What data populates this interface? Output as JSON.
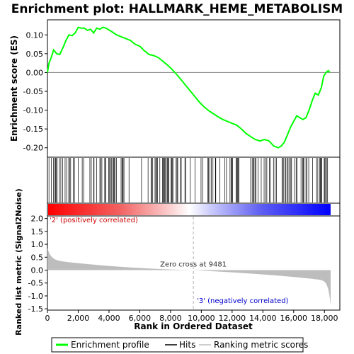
{
  "chart_data": {
    "type": "line",
    "title": "Enrichment plot: HALLMARK_HEME_METABOLISM",
    "xlabel": "Rank in Ordered Dataset",
    "ylabel_top": "Enrichment score (ES)",
    "ylabel_bottom": "Ranked list metric (Signal2Noise)",
    "xlim": [
      0,
      19000
    ],
    "x_ticks": [
      0,
      2000,
      4000,
      6000,
      8000,
      10000,
      12000,
      14000,
      16000,
      18000
    ],
    "x_tick_labels": [
      "0",
      "2,000",
      "4,000",
      "6,000",
      "8,000",
      "10,000",
      "12,000",
      "14,000",
      "16,000",
      "18,000"
    ],
    "es_ylim": [
      -0.225,
      0.14
    ],
    "es_y_ticks": [
      0.1,
      0.05,
      0.0,
      -0.05,
      -0.1,
      -0.15,
      -0.2
    ],
    "es_y_tick_labels": [
      "0.10",
      "0.05",
      "0.00",
      "-0.05",
      "-0.10",
      "-0.15",
      "-0.20"
    ],
    "metric_ylim": [
      -1.55,
      2.1
    ],
    "metric_y_ticks": [
      2.0,
      1.5,
      1.0,
      0.5,
      0.0,
      -0.5,
      -1.0,
      -1.5
    ],
    "metric_y_tick_labels": [
      "2.0",
      "1.5",
      "1.0",
      "0.5",
      "0.0",
      "-0.5",
      "-1.0",
      "-1.5"
    ],
    "series": [
      {
        "name": "Enrichment profile",
        "color": "#00ff00",
        "x": [
          0,
          100,
          250,
          400,
          600,
          800,
          1000,
          1200,
          1400,
          1600,
          1800,
          2000,
          2200,
          2400,
          2600,
          2800,
          3000,
          3200,
          3400,
          3600,
          3800,
          4000,
          4200,
          4500,
          4800,
          5100,
          5400,
          5700,
          6000,
          6300,
          6600,
          6900,
          7200,
          7500,
          7800,
          8100,
          8400,
          8700,
          9000,
          9300,
          9600,
          9900,
          10200,
          10500,
          10800,
          11100,
          11400,
          11700,
          12000,
          12300,
          12600,
          12900,
          13200,
          13500,
          13800,
          14100,
          14400,
          14700,
          15000,
          15200,
          15400,
          15600,
          15800,
          16000,
          16200,
          16400,
          16600,
          16800,
          17000,
          17200,
          17400,
          17600,
          17800,
          17950,
          18100,
          18250,
          18350
        ],
        "y": [
          0.0,
          0.025,
          0.04,
          0.06,
          0.05,
          0.048,
          0.065,
          0.085,
          0.1,
          0.098,
          0.105,
          0.12,
          0.118,
          0.118,
          0.112,
          0.115,
          0.105,
          0.118,
          0.115,
          0.12,
          0.118,
          0.113,
          0.108,
          0.1,
          0.095,
          0.09,
          0.085,
          0.075,
          0.07,
          0.058,
          0.048,
          0.045,
          0.04,
          0.03,
          0.02,
          0.008,
          -0.005,
          -0.02,
          -0.035,
          -0.05,
          -0.065,
          -0.08,
          -0.092,
          -0.102,
          -0.11,
          -0.118,
          -0.125,
          -0.13,
          -0.135,
          -0.14,
          -0.15,
          -0.162,
          -0.17,
          -0.178,
          -0.182,
          -0.178,
          -0.182,
          -0.195,
          -0.2,
          -0.195,
          -0.185,
          -0.165,
          -0.145,
          -0.13,
          -0.115,
          -0.12,
          -0.125,
          -0.12,
          -0.1,
          -0.075,
          -0.055,
          -0.06,
          -0.04,
          -0.01,
          0.0,
          0.005,
          0.0
        ]
      }
    ],
    "hits_legend": "Hits",
    "metric_legend": "Ranking metric scores",
    "zero_cross_label": "Zero cross at 9481",
    "zero_cross_x": 9481,
    "pos_label": "'2' (positively correlated)",
    "neg_label": "'3' (negatively correlated)",
    "n_genes": 18400,
    "colors": {
      "profile": "#00ff00",
      "pos_label": "#cc0000",
      "neg_label": "#0000cc",
      "metric_fill": "#bdbdbd",
      "zero_line": "#b0b0b0"
    }
  }
}
